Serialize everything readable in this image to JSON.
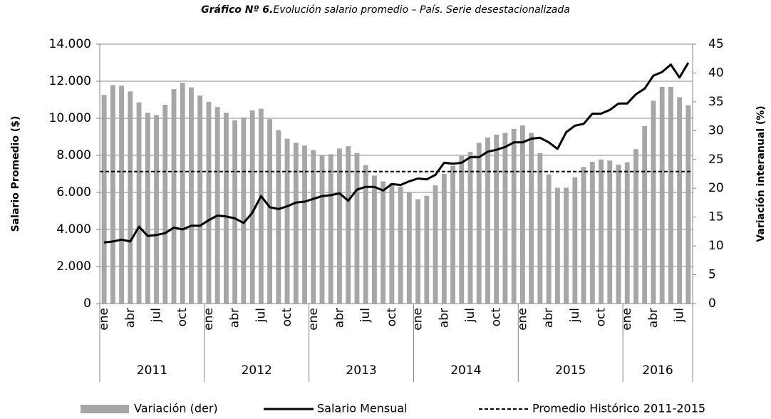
{
  "chart_data": {
    "type": "bar-line",
    "title_label": "Gráfico Nº 6.",
    "title": "Evolución salario promedio – País. Serie desestacionalizada",
    "y_label": "Salario Promedio ($)",
    "y2_label": "Variación interanual (%)",
    "categories": [
      "ene",
      null,
      null,
      "abr",
      null,
      null,
      "jul",
      null,
      null,
      "oct",
      null,
      null,
      "ene",
      null,
      null,
      "abr",
      null,
      null,
      "jul",
      null,
      null,
      "oct",
      null,
      null,
      "ene",
      null,
      null,
      "abr",
      null,
      null,
      "jul",
      null,
      null,
      "oct",
      null,
      null,
      "ene",
      null,
      null,
      "abr",
      null,
      null,
      "jul",
      null,
      null,
      "oct",
      null,
      null,
      "ene",
      null,
      null,
      "abr",
      null,
      null,
      "jul",
      null,
      null,
      "oct",
      null,
      null,
      "ene",
      null,
      null,
      "abr",
      null,
      null,
      "jul",
      null
    ],
    "years": [
      "2011",
      "2012",
      "2013",
      "2014",
      "2015",
      "2016"
    ],
    "series": [
      {
        "name": "Variación (der)",
        "type": "bar",
        "axis": "y2",
        "color": "#a6a6a6",
        "values": [
          36.2,
          37.9,
          37.8,
          36.8,
          34.9,
          33.1,
          32.7,
          34.5,
          37.2,
          38.3,
          37.5,
          36.1,
          35,
          34.1,
          33.1,
          31.8,
          32.3,
          33.5,
          33.8,
          32,
          30.1,
          28.6,
          27.9,
          27.4,
          26.6,
          25.8,
          25.9,
          26.9,
          27.3,
          26.1,
          24,
          22.2,
          21.2,
          20.9,
          20.3,
          19.3,
          18.1,
          18.7,
          20.5,
          22.5,
          23.9,
          25.6,
          26.3,
          27.9,
          28.8,
          29.3,
          29.6,
          30.3,
          30.9,
          29.6,
          26.1,
          22.4,
          20.1,
          20.1,
          21.9,
          23.7,
          24.6,
          25,
          24.8,
          24.1,
          24.5,
          26.8,
          30.8,
          35.2,
          37.6,
          37.6,
          35.8,
          34.4
        ]
      },
      {
        "name": "Salario Mensual",
        "type": "line",
        "color": "#000000",
        "values": [
          3300,
          3350,
          3450,
          3350,
          4150,
          3650,
          3700,
          3800,
          4100,
          4000,
          4200,
          4200,
          4500,
          4750,
          4700,
          4600,
          4350,
          4900,
          5800,
          5200,
          5100,
          5250,
          5450,
          5500,
          5650,
          5800,
          5850,
          5950,
          5550,
          6150,
          6300,
          6300,
          6100,
          6450,
          6400,
          6600,
          6750,
          6700,
          6950,
          7600,
          7550,
          7600,
          7900,
          7900,
          8200,
          8300,
          8450,
          8700,
          8700,
          8900,
          8950,
          8700,
          8350,
          9250,
          9600,
          9700,
          10250,
          10250,
          10450,
          10800,
          10800,
          11300,
          11600,
          12300,
          12500,
          12900,
          12200,
          13000
        ]
      },
      {
        "name": "Promedio Histórico 2011-2015",
        "type": "hline",
        "axis": "y2",
        "style": "dashed",
        "color": "#000000",
        "value": 22.9
      }
    ],
    "ylim": [
      0,
      14000
    ],
    "yticks": [
      0,
      {
        "value": 2000,
        "label": "2.000"
      },
      {
        "value": 4000,
        "label": "4.000"
      },
      {
        "value": 6000,
        "label": "6.000"
      },
      {
        "value": 8000,
        "label": "8.000"
      },
      {
        "value": 10000,
        "label": "10.000"
      },
      {
        "value": 12000,
        "label": "12.000"
      },
      {
        "value": 14000,
        "label": "14.000"
      }
    ],
    "y2lim": [
      0,
      45
    ],
    "y2ticks": [
      0,
      5,
      10,
      15,
      20,
      25,
      30,
      35,
      40,
      45
    ],
    "grid": true
  }
}
